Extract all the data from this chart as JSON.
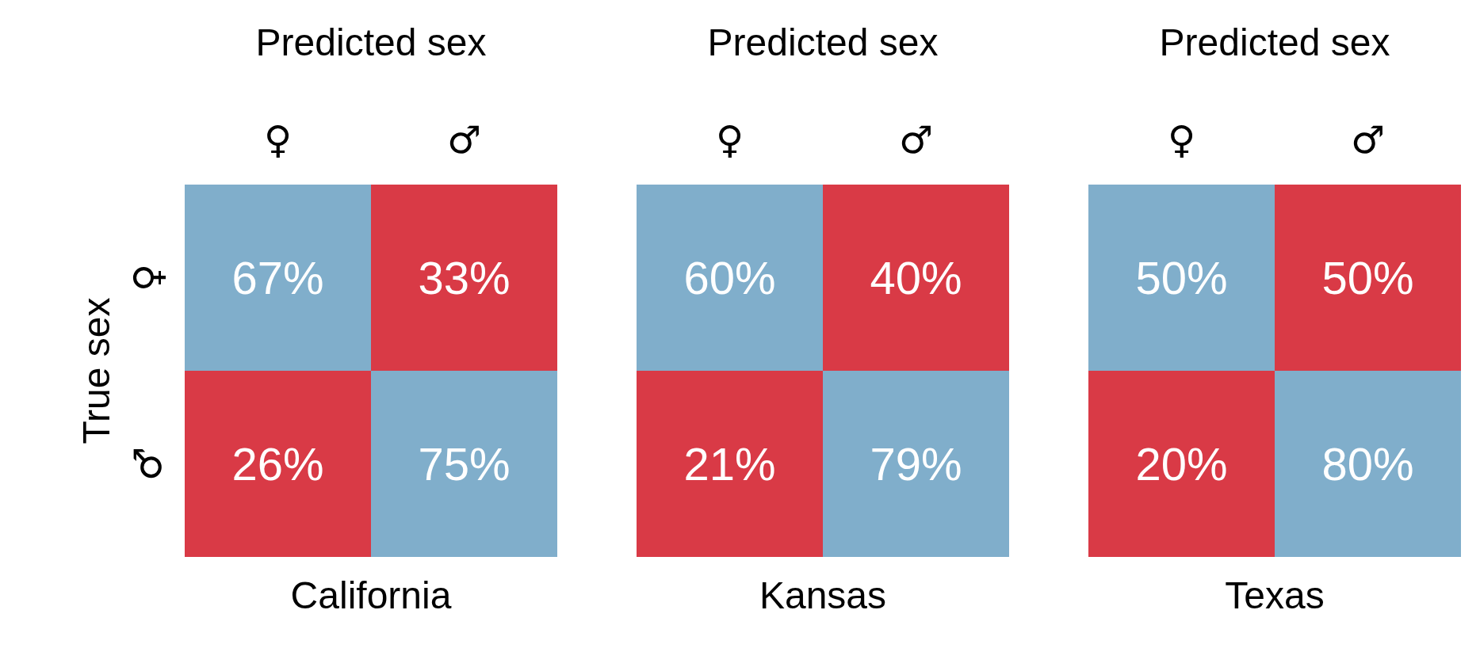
{
  "chart_data": [
    {
      "type": "heatmap",
      "title": "California",
      "xlabel": "Predicted sex",
      "ylabel": "True sex",
      "categories": [
        "♀",
        "♂"
      ],
      "y_categories": [
        "♀",
        "♂"
      ],
      "cells": [
        [
          67,
          33
        ],
        [
          26,
          75
        ]
      ],
      "cell_labels": [
        [
          "67%",
          "33%"
        ],
        [
          "26%",
          "75%"
        ]
      ],
      "colors": [
        [
          "#80aecb",
          "#d93a46"
        ],
        [
          "#d93a46",
          "#80aecb"
        ]
      ]
    },
    {
      "type": "heatmap",
      "title": "Kansas",
      "xlabel": "Predicted sex",
      "categories": [
        "♀",
        "♂"
      ],
      "y_categories": [
        null,
        null
      ],
      "cells": [
        [
          60,
          40
        ],
        [
          21,
          79
        ]
      ],
      "cell_labels": [
        [
          "60%",
          "40%"
        ],
        [
          "21%",
          "79%"
        ]
      ],
      "colors": [
        [
          "#80aecb",
          "#d93a46"
        ],
        [
          "#d93a46",
          "#80aecb"
        ]
      ]
    },
    {
      "type": "heatmap",
      "title": "Texas",
      "xlabel": "Predicted sex",
      "categories": [
        "♀",
        "♂"
      ],
      "y_categories": [
        null,
        null
      ],
      "cells": [
        [
          50,
          50
        ],
        [
          20,
          80
        ]
      ],
      "cell_labels": [
        [
          "50%",
          "50%"
        ],
        [
          "20%",
          "80%"
        ]
      ],
      "colors": [
        [
          "#80aecb",
          "#d93a46"
        ],
        [
          "#d93a46",
          "#80aecb"
        ]
      ]
    }
  ]
}
